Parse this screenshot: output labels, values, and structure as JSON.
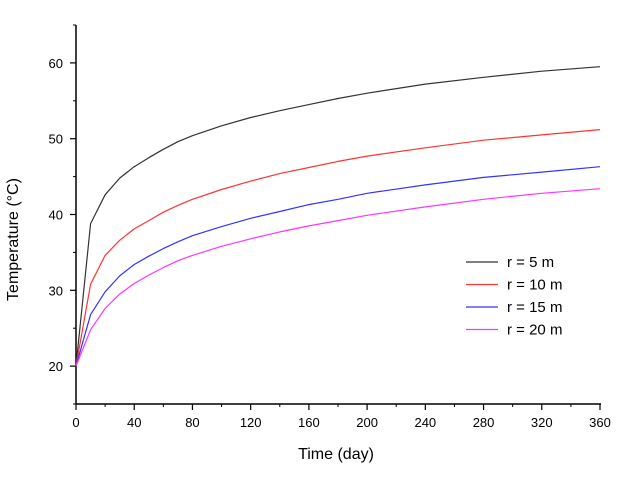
{
  "chart_data": {
    "type": "line",
    "title": "",
    "xlabel": "Time (day)",
    "ylabel": "Temperature (°C)",
    "xlim": [
      0,
      360
    ],
    "ylim": [
      15,
      65
    ],
    "xticks": [
      0,
      40,
      80,
      120,
      160,
      200,
      240,
      280,
      320,
      360
    ],
    "yticks": [
      20,
      30,
      40,
      50,
      60
    ],
    "grid": false,
    "legend_position": "right-center",
    "series": [
      {
        "name": "r = 5 m",
        "color": "#333333",
        "x": [
          0,
          10,
          20,
          30,
          40,
          50,
          60,
          70,
          80,
          100,
          120,
          140,
          160,
          180,
          200,
          240,
          280,
          320,
          360
        ],
        "y": [
          20,
          38.8,
          42.6,
          44.8,
          46.3,
          47.5,
          48.6,
          49.6,
          50.4,
          51.7,
          52.8,
          53.7,
          54.5,
          55.3,
          56.0,
          57.2,
          58.1,
          58.9,
          59.5
        ]
      },
      {
        "name": "r = 10 m",
        "color": "#ff3333",
        "x": [
          0,
          10,
          20,
          30,
          40,
          50,
          60,
          70,
          80,
          100,
          120,
          140,
          160,
          180,
          200,
          240,
          280,
          320,
          360
        ],
        "y": [
          20,
          30.8,
          34.6,
          36.6,
          38.1,
          39.2,
          40.3,
          41.2,
          42.0,
          43.3,
          44.4,
          45.4,
          46.2,
          47.0,
          47.7,
          48.8,
          49.8,
          50.5,
          51.2
        ]
      },
      {
        "name": "r = 15 m",
        "color": "#3333ff",
        "x": [
          0,
          10,
          20,
          30,
          40,
          50,
          60,
          70,
          80,
          100,
          120,
          140,
          160,
          180,
          200,
          240,
          280,
          320,
          360
        ],
        "y": [
          20,
          26.8,
          29.8,
          31.9,
          33.4,
          34.5,
          35.5,
          36.4,
          37.2,
          38.4,
          39.5,
          40.4,
          41.3,
          42.0,
          42.8,
          43.9,
          44.9,
          45.6,
          46.3
        ]
      },
      {
        "name": "r = 20 m",
        "color": "#ff33ff",
        "x": [
          0,
          10,
          20,
          30,
          40,
          50,
          60,
          70,
          80,
          100,
          120,
          140,
          160,
          180,
          200,
          240,
          280,
          320,
          360
        ],
        "y": [
          20,
          24.8,
          27.6,
          29.5,
          30.9,
          32.0,
          33.0,
          33.9,
          34.6,
          35.8,
          36.8,
          37.7,
          38.5,
          39.2,
          39.9,
          41.0,
          42.0,
          42.8,
          43.4
        ]
      }
    ]
  }
}
